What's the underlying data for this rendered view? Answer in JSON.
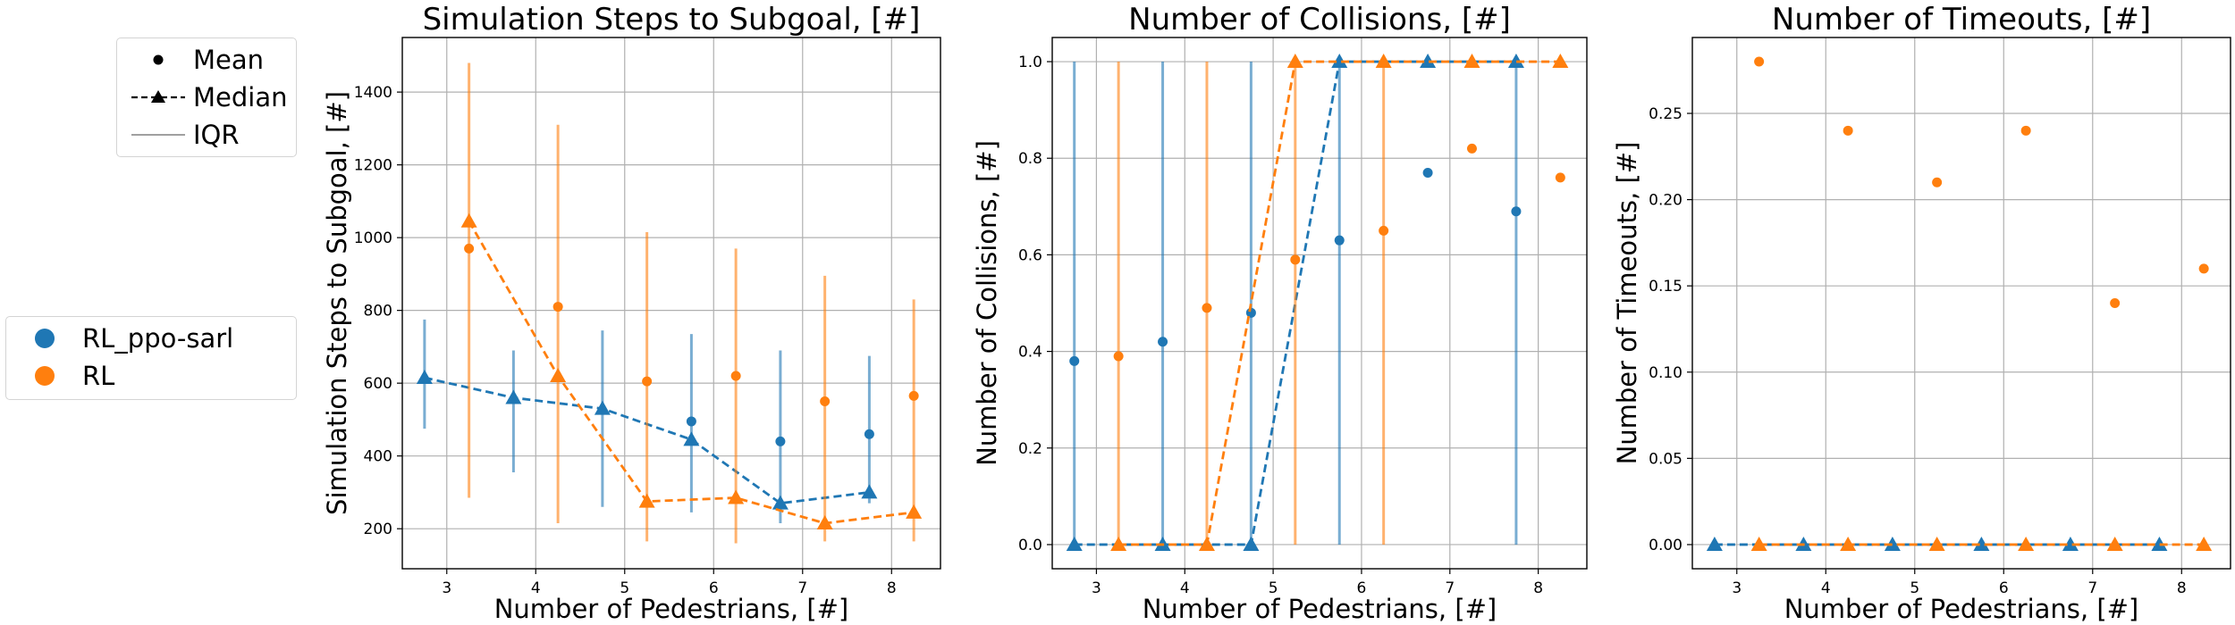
{
  "colors": {
    "blue": "#1f77b4",
    "orange": "#ff7f0e",
    "grid": "#b0b0b0",
    "iqr_line": "#808080"
  },
  "legend_styles": {
    "title": "",
    "items": [
      {
        "label": "Mean",
        "marker": "dot"
      },
      {
        "label": "Median",
        "marker": "dashed-triangle"
      },
      {
        "label": "IQR",
        "marker": "line"
      }
    ]
  },
  "legend_series": {
    "items": [
      {
        "label": "RL_ppo-sarl",
        "color": "#1f77b4"
      },
      {
        "label": "RL",
        "color": "#ff7f0e"
      }
    ]
  },
  "chart_data": [
    {
      "type": "scatter",
      "title": "Simulation Steps to Subgoal, [#]",
      "xlabel": "Number of Pedestrians, [#]",
      "ylabel": "Simulation Steps to Subgoal, [#]",
      "xlim": [
        2.5,
        8.55
      ],
      "ylim": [
        90,
        1550
      ],
      "xticks": [
        3,
        4,
        5,
        6,
        7,
        8
      ],
      "yticks": [
        200,
        400,
        600,
        800,
        1000,
        1200,
        1400
      ],
      "grid": true,
      "series": [
        {
          "name": "RL_ppo-sarl",
          "color": "#1f77b4",
          "x": [
            2.75,
            3.75,
            4.75,
            5.75,
            6.75,
            7.75
          ],
          "mean": [
            null,
            null,
            null,
            495,
            440,
            460
          ],
          "median": [
            615,
            560,
            530,
            445,
            270,
            300
          ],
          "iqr_low": [
            475,
            355,
            260,
            245,
            215,
            270
          ],
          "iqr_high": [
            775,
            690,
            745,
            735,
            690,
            675
          ]
        },
        {
          "name": "RL",
          "color": "#ff7f0e",
          "x": [
            3.25,
            4.25,
            5.25,
            6.25,
            7.25,
            8.25
          ],
          "mean": [
            970,
            810,
            605,
            620,
            550,
            565
          ],
          "median": [
            1045,
            620,
            275,
            285,
            215,
            245
          ],
          "iqr_low": [
            285,
            215,
            165,
            160,
            165,
            165
          ],
          "iqr_high": [
            1480,
            1310,
            1015,
            970,
            895,
            830
          ]
        }
      ]
    },
    {
      "type": "scatter",
      "title": "Number of Collisions, [#]",
      "xlabel": "Number of Pedestrians, [#]",
      "ylabel": "Number of Collisions, [#]",
      "xlim": [
        2.5,
        8.55
      ],
      "ylim": [
        -0.05,
        1.05
      ],
      "xticks": [
        3,
        4,
        5,
        6,
        7,
        8
      ],
      "yticks": [
        0.0,
        0.2,
        0.4,
        0.6,
        0.8,
        1.0
      ],
      "ytick_labels": [
        "0.0",
        "0.2",
        "0.4",
        "0.6",
        "0.8",
        "1.0"
      ],
      "grid": true,
      "series": [
        {
          "name": "RL_ppo-sarl",
          "color": "#1f77b4",
          "x": [
            2.75,
            3.75,
            4.75,
            5.75,
            6.75,
            7.75
          ],
          "mean": [
            0.38,
            0.42,
            0.48,
            0.63,
            0.77,
            0.69
          ],
          "median": [
            0,
            0,
            0,
            1,
            1,
            1
          ],
          "iqr_low": [
            0,
            0,
            0,
            0,
            null,
            0
          ],
          "iqr_high": [
            1,
            1,
            1,
            1,
            null,
            1
          ]
        },
        {
          "name": "RL",
          "color": "#ff7f0e",
          "x": [
            3.25,
            4.25,
            5.25,
            6.25,
            7.25,
            8.25
          ],
          "mean": [
            0.39,
            0.49,
            0.59,
            0.65,
            0.82,
            0.76
          ],
          "median": [
            0,
            0,
            1,
            1,
            1,
            1
          ],
          "iqr_low": [
            0,
            0,
            0,
            0,
            null,
            null
          ],
          "iqr_high": [
            1,
            1,
            1,
            1,
            null,
            null
          ]
        }
      ]
    },
    {
      "type": "scatter",
      "title": "Number of Timeouts, [#]",
      "xlabel": "Number of Pedestrians, [#]",
      "ylabel": "Number of Timeouts, [#]",
      "xlim": [
        2.5,
        8.55
      ],
      "ylim": [
        -0.014,
        0.294
      ],
      "xticks": [
        3,
        4,
        5,
        6,
        7,
        8
      ],
      "yticks": [
        0.0,
        0.05,
        0.1,
        0.15,
        0.2,
        0.25
      ],
      "ytick_labels": [
        "0.00",
        "0.05",
        "0.10",
        "0.15",
        "0.20",
        "0.25"
      ],
      "grid": true,
      "series": [
        {
          "name": "RL_ppo-sarl",
          "color": "#1f77b4",
          "x": [
            2.75,
            3.75,
            4.75,
            5.75,
            6.75,
            7.75
          ],
          "mean": [
            null,
            null,
            null,
            null,
            null,
            null
          ],
          "median": [
            0,
            0,
            0,
            0,
            0,
            0
          ],
          "iqr_low": [
            null,
            null,
            null,
            null,
            null,
            null
          ],
          "iqr_high": [
            null,
            null,
            null,
            null,
            null,
            null
          ]
        },
        {
          "name": "RL",
          "color": "#ff7f0e",
          "x": [
            3.25,
            4.25,
            5.25,
            6.25,
            7.25,
            8.25
          ],
          "mean": [
            0.28,
            0.24,
            0.21,
            0.24,
            0.14,
            0.16
          ],
          "median": [
            0,
            0,
            0,
            0,
            0,
            0
          ],
          "iqr_low": [
            null,
            null,
            null,
            null,
            null,
            null
          ],
          "iqr_high": [
            null,
            null,
            null,
            null,
            null,
            null
          ]
        }
      ]
    }
  ]
}
